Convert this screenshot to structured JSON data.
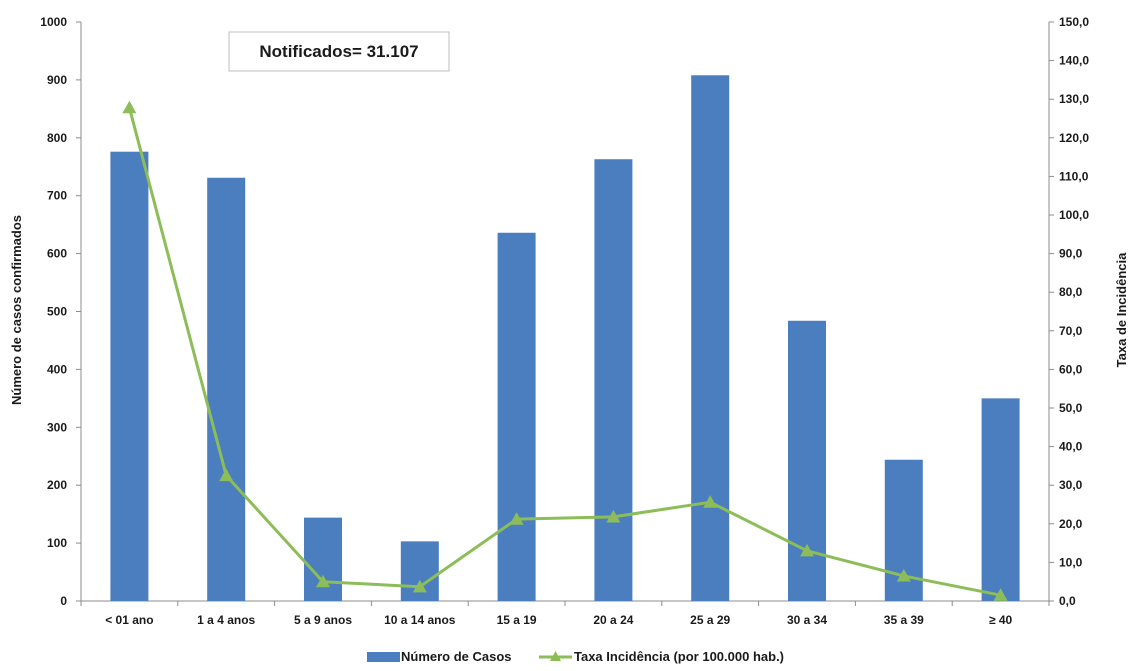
{
  "chart_data": {
    "type": "bar",
    "title": "",
    "annotation": "Notificados= 31.107",
    "categories": [
      "< 01 ano",
      "1 a 4  anos",
      "5 a 9 anos",
      "10 a 14 anos",
      "15 a 19",
      "20 a 24",
      "25 a 29",
      "30 a 34",
      "35 a 39",
      "≥ 40"
    ],
    "series": [
      {
        "name": "Número de Casos",
        "type": "bar",
        "axis": "left",
        "color": "#4a7ebf",
        "values": [
          776,
          731,
          144,
          103,
          636,
          763,
          908,
          484,
          244,
          350
        ]
      },
      {
        "name": "Taxa Incidência (por 100.000 hab.)",
        "type": "line",
        "axis": "right",
        "color": "#8dbd58",
        "marker": "triangle",
        "values": [
          127.8,
          32.5,
          5.0,
          3.7,
          21.2,
          21.8,
          25.6,
          13.0,
          6.5,
          1.5
        ]
      }
    ],
    "ylabel": "Número de casos confirmados",
    "ylim": [
      0,
      1000
    ],
    "yticks": [
      "0",
      "100",
      "200",
      "300",
      "400",
      "500",
      "600",
      "700",
      "800",
      "900",
      "1000"
    ],
    "y2label": "Taxa de Incidência",
    "y2lim": [
      0,
      150
    ],
    "y2ticks": [
      "0,0",
      "10,0",
      "20,0",
      "30,0",
      "40,0",
      "50,0",
      "60,0",
      "70,0",
      "80,0",
      "90,0",
      "100,0",
      "110,0",
      "120,0",
      "130,0",
      "140,0",
      "150,0"
    ],
    "grid": false,
    "legend_position": "bottom"
  }
}
